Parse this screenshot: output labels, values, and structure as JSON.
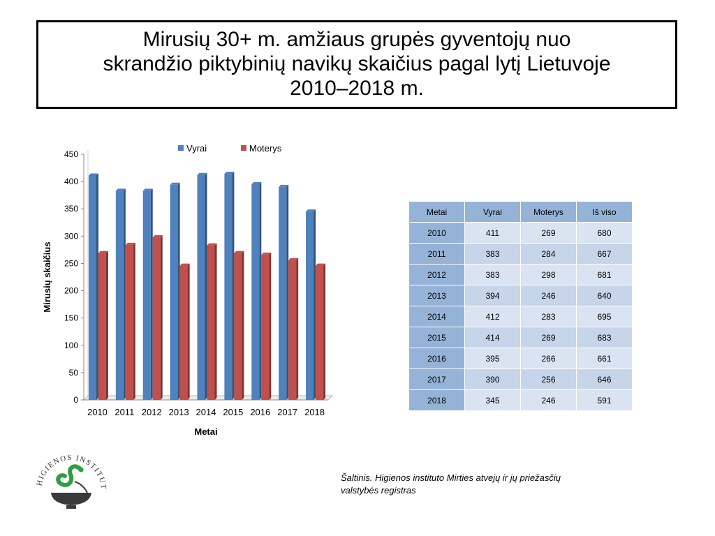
{
  "title": {
    "line1": "Mirusių 30+ m. amžiaus grupės gyventojų nuo",
    "line2": "skrandžio piktybinių navikų skaičius pagal lytį Lietuvoje",
    "line3": "2010–2018 m."
  },
  "chart_data": {
    "type": "bar",
    "categories": [
      "2010",
      "2011",
      "2012",
      "2013",
      "2014",
      "2015",
      "2016",
      "2017",
      "2018"
    ],
    "series": [
      {
        "name": "Vyrai",
        "values": [
          411,
          383,
          383,
          394,
          412,
          414,
          395,
          390,
          345
        ],
        "color": "#4f81bd"
      },
      {
        "name": "Moterys",
        "values": [
          269,
          284,
          298,
          246,
          283,
          269,
          266,
          256,
          246
        ],
        "color": "#c0504d"
      }
    ],
    "xlabel": "Metai",
    "ylabel": "Mirusių skaičius",
    "ylim": [
      0,
      450
    ],
    "yticks": [
      0,
      50,
      100,
      150,
      200,
      250,
      300,
      350,
      400,
      450
    ],
    "legend_position": "top",
    "grid": false,
    "style": "3d-clustered-column"
  },
  "table": {
    "headers": [
      "Metai",
      "Vyrai",
      "Moterys",
      "Iš viso"
    ],
    "rows": [
      [
        "2010",
        "411",
        "269",
        "680"
      ],
      [
        "2011",
        "383",
        "284",
        "667"
      ],
      [
        "2012",
        "383",
        "298",
        "681"
      ],
      [
        "2013",
        "394",
        "246",
        "640"
      ],
      [
        "2014",
        "412",
        "283",
        "695"
      ],
      [
        "2015",
        "414",
        "269",
        "683"
      ],
      [
        "2016",
        "395",
        "266",
        "661"
      ],
      [
        "2017",
        "390",
        "256",
        "646"
      ],
      [
        "2018",
        "345",
        "246",
        "591"
      ]
    ]
  },
  "source": {
    "line1": "Šaltinis. Higienos instituto  Mirties atvejų ir jų priežasčių",
    "line2": "valstybės registras"
  },
  "logo": {
    "text": "HIGIENOS INSTITUTAS",
    "colors": {
      "snake": "#2e9e3e",
      "bowl": "#3a3a3a"
    }
  }
}
